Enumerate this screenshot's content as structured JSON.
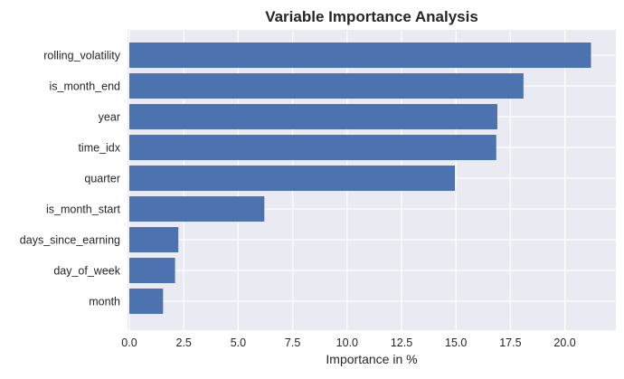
{
  "chart_data": {
    "type": "bar",
    "orientation": "horizontal",
    "title": "Variable Importance Analysis",
    "xlabel": "Importance in %",
    "ylabel": "",
    "categories": [
      "rolling_volatility",
      "is_month_end",
      "year",
      "time_idx",
      "quarter",
      "is_month_start",
      "days_since_earning",
      "day_of_week",
      "month"
    ],
    "values": [
      21.2,
      18.1,
      16.9,
      16.85,
      14.95,
      6.2,
      2.25,
      2.1,
      1.55
    ],
    "xlim": [
      0,
      22.0
    ],
    "xticks": [
      0.0,
      2.5,
      5.0,
      7.5,
      10.0,
      12.5,
      15.0,
      17.5,
      20.0
    ],
    "xtick_labels": [
      "0.0",
      "2.5",
      "5.0",
      "7.5",
      "10.0",
      "12.5",
      "15.0",
      "17.5",
      "20.0"
    ],
    "grid": true,
    "colors": {
      "bar": "#4c72b0",
      "plot_background": "#eaeaf2",
      "grid": "#ffffff",
      "text": "#262626"
    }
  }
}
